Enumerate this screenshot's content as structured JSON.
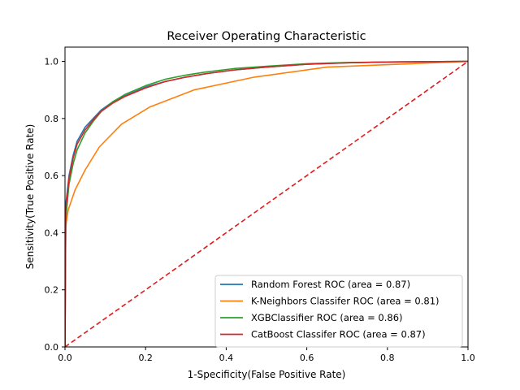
{
  "chart_data": {
    "type": "line",
    "title": "Receiver Operating Characteristic",
    "xlabel": "1-Specificity(False Positive Rate)",
    "ylabel": "Sensitivity(True Positive Rate)",
    "xlim": [
      0,
      1
    ],
    "ylim": [
      0,
      1.05
    ],
    "xticks": [
      "0.0",
      "0.2",
      "0.4",
      "0.6",
      "0.8",
      "1.0"
    ],
    "yticks": [
      "0.0",
      "0.2",
      "0.4",
      "0.6",
      "0.8",
      "1.0"
    ],
    "grid": false,
    "legend_position": "lower-right",
    "series": [
      {
        "name": "Random Forest ROC (area = 0.87)",
        "color": "#1f77b4",
        "dash": false,
        "x": [
          0,
          0.002,
          0.01,
          0.02,
          0.03,
          0.05,
          0.07,
          0.09,
          0.12,
          0.15,
          0.2,
          0.25,
          0.3,
          0.35,
          0.42,
          0.5,
          0.6,
          0.7,
          0.8,
          0.9,
          1.0
        ],
        "y": [
          0,
          0.5,
          0.6,
          0.67,
          0.72,
          0.77,
          0.8,
          0.83,
          0.86,
          0.88,
          0.91,
          0.93,
          0.945,
          0.957,
          0.97,
          0.98,
          0.99,
          0.995,
          0.998,
          0.999,
          1.0
        ]
      },
      {
        "name": "K-Neighbors Classifer ROC (area = 0.81)",
        "color": "#ff7f0e",
        "dash": false,
        "x": [
          0,
          0.0005,
          0.008,
          0.025,
          0.05,
          0.085,
          0.14,
          0.21,
          0.32,
          0.47,
          0.65,
          1.0
        ],
        "y": [
          0,
          0.41,
          0.48,
          0.55,
          0.62,
          0.7,
          0.78,
          0.84,
          0.9,
          0.945,
          0.98,
          1.0
        ]
      },
      {
        "name": "XGBClassifier ROC (area = 0.86)",
        "color": "#2ca02c",
        "dash": false,
        "x": [
          0,
          0.002,
          0.01,
          0.02,
          0.03,
          0.05,
          0.07,
          0.09,
          0.12,
          0.15,
          0.2,
          0.25,
          0.3,
          0.35,
          0.42,
          0.5,
          0.6,
          0.7,
          0.8,
          0.9,
          1.0
        ],
        "y": [
          0,
          0.45,
          0.57,
          0.64,
          0.69,
          0.75,
          0.79,
          0.825,
          0.86,
          0.885,
          0.915,
          0.938,
          0.952,
          0.963,
          0.975,
          0.983,
          0.992,
          0.996,
          0.998,
          0.999,
          1.0
        ]
      },
      {
        "name": "CatBoost Classifer ROC (area = 0.87)",
        "color": "#d62728",
        "dash": false,
        "x": [
          0,
          0.002,
          0.01,
          0.02,
          0.03,
          0.05,
          0.07,
          0.09,
          0.12,
          0.15,
          0.2,
          0.25,
          0.3,
          0.35,
          0.42,
          0.5,
          0.6,
          0.7,
          0.8,
          0.9,
          1.0
        ],
        "y": [
          0,
          0.48,
          0.59,
          0.66,
          0.71,
          0.76,
          0.795,
          0.825,
          0.855,
          0.878,
          0.907,
          0.93,
          0.945,
          0.957,
          0.97,
          0.98,
          0.99,
          0.995,
          0.998,
          0.999,
          1.0
        ]
      }
    ],
    "reference_line": {
      "color": "#e31a1c",
      "dash": true,
      "x": [
        0,
        1
      ],
      "y": [
        0,
        1
      ]
    }
  }
}
